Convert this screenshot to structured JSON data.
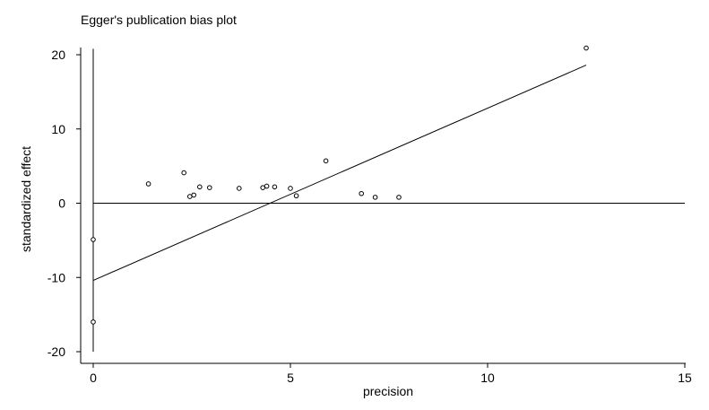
{
  "chart_data": {
    "type": "scatter",
    "title": "Egger's publication bias plot",
    "xlabel": "precision",
    "ylabel": "standardized effect",
    "xlim": [
      0,
      15
    ],
    "ylim": [
      -20,
      21
    ],
    "xticks": [
      0,
      5,
      10,
      15
    ],
    "yticks": [
      20,
      10,
      0,
      -10,
      -20
    ],
    "xtick_labels": [
      "0",
      "5",
      "10",
      "15"
    ],
    "ytick_labels": [
      "20",
      "10",
      "0",
      "-10",
      "-20"
    ],
    "grid": false,
    "legend": "none",
    "series": [
      {
        "points": [
          {
            "x": 0.0,
            "y": -4.9
          },
          {
            "x": 0.0,
            "y": -16.0
          },
          {
            "x": 1.4,
            "y": 2.6
          },
          {
            "x": 2.3,
            "y": 4.1
          },
          {
            "x": 2.45,
            "y": 0.9
          },
          {
            "x": 2.55,
            "y": 1.1
          },
          {
            "x": 2.7,
            "y": 2.2
          },
          {
            "x": 2.95,
            "y": 2.1
          },
          {
            "x": 3.7,
            "y": 2.0
          },
          {
            "x": 4.3,
            "y": 2.1
          },
          {
            "x": 4.4,
            "y": 2.3
          },
          {
            "x": 4.6,
            "y": 2.2
          },
          {
            "x": 5.0,
            "y": 2.0
          },
          {
            "x": 5.15,
            "y": 1.0
          },
          {
            "x": 5.9,
            "y": 5.7
          },
          {
            "x": 6.8,
            "y": 1.3
          },
          {
            "x": 7.15,
            "y": 0.8
          },
          {
            "x": 7.75,
            "y": 0.8
          },
          {
            "x": 12.5,
            "y": 20.9
          }
        ]
      }
    ],
    "regression_line": {
      "x": [
        0,
        12.5
      ],
      "y": [
        -10.4,
        18.6
      ]
    },
    "reference_lines": {
      "horizontal_y": 0,
      "horizontal_x_range": [
        0,
        15
      ],
      "vertical_x": 0,
      "vertical_y_range": [
        -20,
        20.8
      ]
    }
  }
}
